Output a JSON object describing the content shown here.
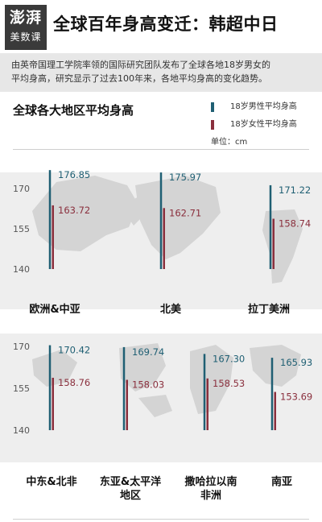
{
  "header": {
    "logo_top": "澎湃",
    "logo_bottom": "美数课",
    "title": "全球百年身高变迁：韩超中日"
  },
  "intro": {
    "line1": "由英帝国理工学院率领的国际研究团队发布了全球各地18岁男女的",
    "line2": "平均身高，研究显示了过去100年来，各地平均身高的变化趋势。"
  },
  "colors": {
    "male": "#1f5f73",
    "female": "#8a2f3d",
    "map": "#d4d4d4"
  },
  "chart_data": {
    "type": "bar",
    "title": "全球各大地区平均身高",
    "unit": "单位：cm",
    "series": [
      {
        "name": "18岁男性平均身高",
        "color": "#1f5f73"
      },
      {
        "name": "18岁女性平均身高",
        "color": "#8a2f3d"
      }
    ],
    "ylim": [
      140,
      170
    ],
    "yticks": [
      140,
      155,
      170
    ],
    "groups": [
      {
        "categories": [
          "欧洲&中亚",
          "北美",
          "拉丁美洲"
        ],
        "male": [
          176.85,
          175.97,
          171.22
        ],
        "female": [
          163.72,
          162.71,
          158.74
        ]
      },
      {
        "categories": [
          "中东&北非",
          "东亚&太平洋\n地区",
          "撒哈拉以南\n非洲",
          "南亚"
        ],
        "male": [
          170.42,
          169.74,
          167.3,
          165.93
        ],
        "female": [
          158.76,
          158.03,
          158.53,
          153.69
        ]
      }
    ]
  }
}
